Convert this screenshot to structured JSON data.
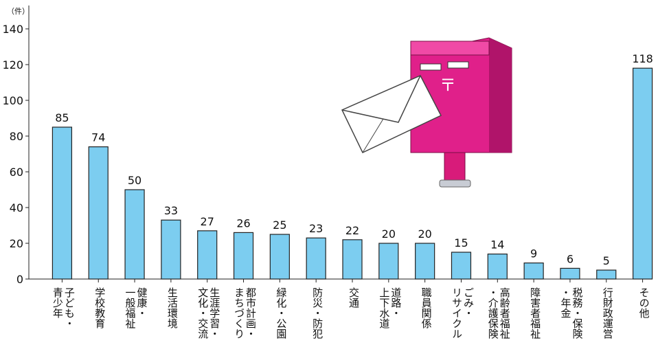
{
  "chart_data": {
    "type": "bar",
    "unit": "（件）",
    "categories": [
      [
        "子ども・",
        "青少年"
      ],
      [
        "学校教育"
      ],
      [
        "健康・",
        "一般福祉"
      ],
      [
        "生活環境"
      ],
      [
        "生涯学習・",
        "文化・交流"
      ],
      [
        "都市計画・",
        "まちづくり"
      ],
      [
        "緑化・公園"
      ],
      [
        "防災・防犯"
      ],
      [
        "交通"
      ],
      [
        "道路・",
        "上下水道"
      ],
      [
        "職員関係"
      ],
      [
        "ごみ・",
        "リサイクル"
      ],
      [
        "高齢者福祉",
        "・介護保険"
      ],
      [
        "障害者福祉"
      ],
      [
        "税務・保険",
        "・年金"
      ],
      [
        "行財政運営"
      ],
      [
        "その他"
      ]
    ],
    "values": [
      85,
      74,
      50,
      33,
      27,
      26,
      25,
      23,
      22,
      20,
      20,
      15,
      14,
      9,
      6,
      5,
      118
    ],
    "color": "#7ccdf0",
    "ylim": [
      0,
      140
    ],
    "yticks": [
      0,
      20,
      40,
      60,
      80,
      100,
      120,
      140
    ],
    "grid": false
  }
}
